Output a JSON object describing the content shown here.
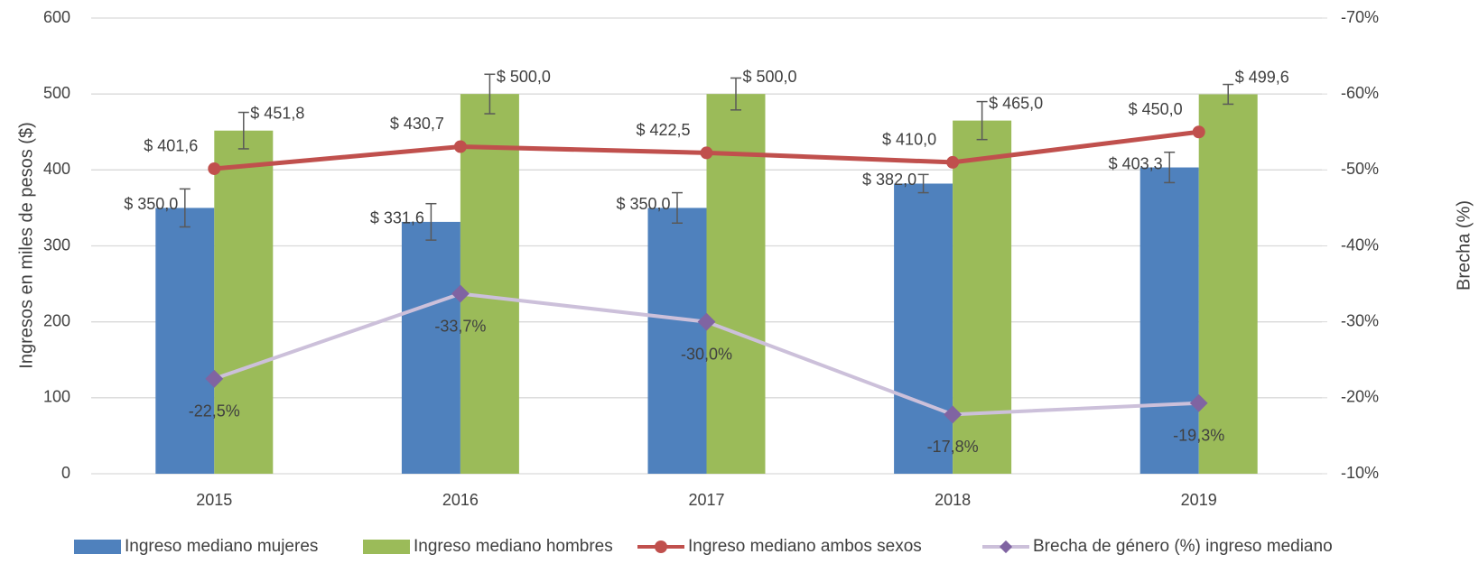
{
  "chart_data": {
    "type": "bar",
    "y_label": "Ingresos en miles de pesos ($)",
    "y2_label": "Brecha (%)",
    "categories": [
      "2015",
      "2016",
      "2017",
      "2018",
      "2019"
    ],
    "ylim": [
      0,
      600
    ],
    "yticks": [
      0,
      100,
      200,
      300,
      400,
      500,
      600
    ],
    "y2lim": [
      -10,
      -70
    ],
    "y2ticks": [
      {
        "value": -70,
        "label": "-70%"
      },
      {
        "value": -60,
        "label": "-60%"
      },
      {
        "value": -50,
        "label": "-50%"
      },
      {
        "value": -40,
        "label": "-40%"
      },
      {
        "value": -30,
        "label": "-30%"
      },
      {
        "value": -20,
        "label": "-20%"
      },
      {
        "value": -10,
        "label": "-10%"
      }
    ],
    "grid": true,
    "legend": "bottom",
    "series": [
      {
        "name": "Ingreso mediano mujeres",
        "type": "bar",
        "color": "#4f81bd",
        "values": [
          350.0,
          331.6,
          350.0,
          382.0,
          403.3
        ],
        "errors": [
          25,
          24,
          20,
          12,
          20
        ],
        "value_labels": [
          "$ 350,0",
          "$ 331,6",
          "$ 350,0",
          "$ 382,0",
          "$ 403,3"
        ]
      },
      {
        "name": "Ingreso mediano hombres",
        "type": "bar",
        "color": "#9bbb59",
        "values": [
          451.8,
          500.0,
          500.0,
          465.0,
          499.6
        ],
        "errors": [
          24,
          26,
          21,
          25,
          13
        ],
        "value_labels": [
          "$ 451,8",
          "$ 500,0",
          "$ 500,0",
          "$ 465,0",
          "$ 499,6"
        ]
      },
      {
        "name": "Ingreso mediano ambos sexos",
        "type": "line",
        "color": "#c0504d",
        "values": [
          401.6,
          430.7,
          422.5,
          410.0,
          450.0
        ],
        "value_labels": [
          "$ 401,6",
          "$ 430,7",
          "$ 422,5",
          "$ 410,0",
          "$ 450,0"
        ]
      },
      {
        "name": "Brecha de género (%) ingreso mediano",
        "type": "line",
        "axis": "y2",
        "color": "#ccc0da",
        "marker_color": "#8064a2",
        "values": [
          -22.5,
          -33.7,
          -30.0,
          -17.8,
          -19.3
        ],
        "value_labels": [
          "-22,5%",
          "-33,7%",
          "-30,0%",
          "-17,8%",
          "-19,3%"
        ]
      }
    ]
  }
}
